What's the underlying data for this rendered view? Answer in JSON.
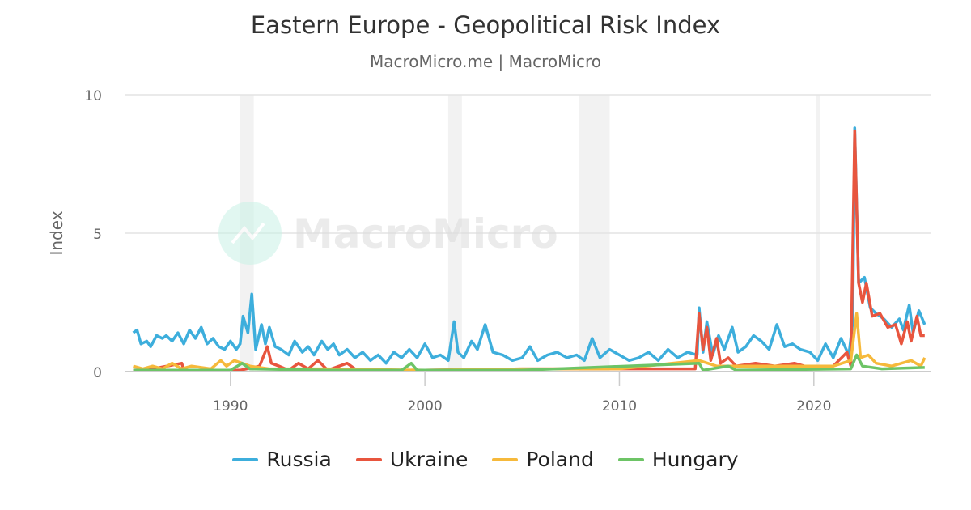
{
  "chart_data": {
    "type": "line",
    "title": "Eastern Europe - Geopolitical Risk Index",
    "subtitle": "MacroMicro.me | MacroMicro",
    "ylabel": "Index",
    "xlabel": "",
    "xlim": [
      1984.6,
      2026
    ],
    "ylim": [
      0,
      10
    ],
    "yticks": [
      0,
      5,
      10
    ],
    "xticks": [
      1990,
      2000,
      2010,
      2020
    ],
    "grid": true,
    "legend_position": "bottom",
    "watermark": "MacroMicro",
    "recession_bands": [
      [
        1990.5,
        1991.2
      ],
      [
        2001.2,
        2001.9
      ],
      [
        2007.9,
        2009.5
      ],
      [
        2020.1,
        2020.3
      ]
    ],
    "series": [
      {
        "name": "Russia",
        "color": "#3DAEDC",
        "points": [
          [
            1985.0,
            1.4
          ],
          [
            1985.2,
            1.5
          ],
          [
            1985.4,
            1.0
          ],
          [
            1985.7,
            1.1
          ],
          [
            1985.9,
            0.9
          ],
          [
            1986.2,
            1.3
          ],
          [
            1986.5,
            1.2
          ],
          [
            1986.7,
            1.3
          ],
          [
            1987.0,
            1.1
          ],
          [
            1987.3,
            1.4
          ],
          [
            1987.6,
            1.0
          ],
          [
            1987.9,
            1.5
          ],
          [
            1988.2,
            1.2
          ],
          [
            1988.5,
            1.6
          ],
          [
            1988.8,
            1.0
          ],
          [
            1989.1,
            1.2
          ],
          [
            1989.4,
            0.9
          ],
          [
            1989.7,
            0.8
          ],
          [
            1990.0,
            1.1
          ],
          [
            1990.3,
            0.8
          ],
          [
            1990.5,
            1.0
          ],
          [
            1990.65,
            2.0
          ],
          [
            1990.9,
            1.4
          ],
          [
            1991.1,
            2.8
          ],
          [
            1991.3,
            0.8
          ],
          [
            1991.6,
            1.7
          ],
          [
            1991.8,
            1.0
          ],
          [
            1992.0,
            1.6
          ],
          [
            1992.3,
            0.9
          ],
          [
            1992.6,
            0.8
          ],
          [
            1993.0,
            0.6
          ],
          [
            1993.3,
            1.1
          ],
          [
            1993.7,
            0.7
          ],
          [
            1994.0,
            0.9
          ],
          [
            1994.3,
            0.6
          ],
          [
            1994.7,
            1.1
          ],
          [
            1995.0,
            0.8
          ],
          [
            1995.3,
            1.0
          ],
          [
            1995.6,
            0.6
          ],
          [
            1996.0,
            0.8
          ],
          [
            1996.4,
            0.5
          ],
          [
            1996.8,
            0.7
          ],
          [
            1997.2,
            0.4
          ],
          [
            1997.6,
            0.6
          ],
          [
            1998.0,
            0.3
          ],
          [
            1998.4,
            0.7
          ],
          [
            1998.8,
            0.5
          ],
          [
            1999.2,
            0.8
          ],
          [
            1999.6,
            0.5
          ],
          [
            2000.0,
            1.0
          ],
          [
            2000.4,
            0.5
          ],
          [
            2000.8,
            0.6
          ],
          [
            2001.2,
            0.4
          ],
          [
            2001.5,
            1.8
          ],
          [
            2001.7,
            0.7
          ],
          [
            2002.0,
            0.5
          ],
          [
            2002.4,
            1.1
          ],
          [
            2002.7,
            0.8
          ],
          [
            2003.1,
            1.7
          ],
          [
            2003.5,
            0.7
          ],
          [
            2004.0,
            0.6
          ],
          [
            2004.5,
            0.4
          ],
          [
            2005.0,
            0.5
          ],
          [
            2005.4,
            0.9
          ],
          [
            2005.8,
            0.4
          ],
          [
            2006.3,
            0.6
          ],
          [
            2006.8,
            0.7
          ],
          [
            2007.3,
            0.5
          ],
          [
            2007.8,
            0.6
          ],
          [
            2008.2,
            0.4
          ],
          [
            2008.6,
            1.2
          ],
          [
            2009.0,
            0.5
          ],
          [
            2009.5,
            0.8
          ],
          [
            2010.0,
            0.6
          ],
          [
            2010.5,
            0.4
          ],
          [
            2011.0,
            0.5
          ],
          [
            2011.5,
            0.7
          ],
          [
            2012.0,
            0.4
          ],
          [
            2012.5,
            0.8
          ],
          [
            2013.0,
            0.5
          ],
          [
            2013.5,
            0.7
          ],
          [
            2014.0,
            0.6
          ],
          [
            2014.1,
            2.3
          ],
          [
            2014.3,
            0.7
          ],
          [
            2014.5,
            1.8
          ],
          [
            2014.8,
            0.6
          ],
          [
            2015.1,
            1.3
          ],
          [
            2015.4,
            0.8
          ],
          [
            2015.8,
            1.6
          ],
          [
            2016.1,
            0.7
          ],
          [
            2016.5,
            0.9
          ],
          [
            2016.9,
            1.3
          ],
          [
            2017.3,
            1.1
          ],
          [
            2017.7,
            0.8
          ],
          [
            2018.1,
            1.7
          ],
          [
            2018.5,
            0.9
          ],
          [
            2018.9,
            1.0
          ],
          [
            2019.3,
            0.8
          ],
          [
            2019.8,
            0.7
          ],
          [
            2020.2,
            0.4
          ],
          [
            2020.6,
            1.0
          ],
          [
            2021.0,
            0.5
          ],
          [
            2021.4,
            1.2
          ],
          [
            2021.8,
            0.6
          ],
          [
            2022.0,
            1.8
          ],
          [
            2022.1,
            8.8
          ],
          [
            2022.3,
            3.2
          ],
          [
            2022.6,
            3.4
          ],
          [
            2022.9,
            2.3
          ],
          [
            2023.2,
            2.1
          ],
          [
            2023.6,
            1.9
          ],
          [
            2024.0,
            1.6
          ],
          [
            2024.4,
            1.9
          ],
          [
            2024.6,
            1.5
          ],
          [
            2024.9,
            2.4
          ],
          [
            2025.1,
            1.4
          ],
          [
            2025.4,
            2.2
          ],
          [
            2025.7,
            1.7
          ]
        ]
      },
      {
        "name": "Ukraine",
        "color": "#E8553E",
        "points": [
          [
            1985.0,
            0.05
          ],
          [
            1986.0,
            0.1
          ],
          [
            1987.5,
            0.3
          ],
          [
            1987.6,
            0.05
          ],
          [
            1989.0,
            0.05
          ],
          [
            1990.5,
            0.05
          ],
          [
            1991.5,
            0.2
          ],
          [
            1991.9,
            0.9
          ],
          [
            1992.1,
            0.3
          ],
          [
            1992.5,
            0.2
          ],
          [
            1993.0,
            0.05
          ],
          [
            1993.5,
            0.3
          ],
          [
            1994.0,
            0.1
          ],
          [
            1994.5,
            0.4
          ],
          [
            1995.0,
            0.05
          ],
          [
            1996.0,
            0.3
          ],
          [
            1996.5,
            0.05
          ],
          [
            2000.0,
            0.05
          ],
          [
            2005.0,
            0.1
          ],
          [
            2010.0,
            0.1
          ],
          [
            2013.9,
            0.1
          ],
          [
            2014.1,
            2.1
          ],
          [
            2014.3,
            0.8
          ],
          [
            2014.5,
            1.6
          ],
          [
            2014.7,
            0.4
          ],
          [
            2015.0,
            1.2
          ],
          [
            2015.2,
            0.3
          ],
          [
            2015.6,
            0.5
          ],
          [
            2016.0,
            0.2
          ],
          [
            2017.0,
            0.3
          ],
          [
            2018.0,
            0.2
          ],
          [
            2019.0,
            0.3
          ],
          [
            2020.0,
            0.1
          ],
          [
            2021.0,
            0.2
          ],
          [
            2021.7,
            0.7
          ],
          [
            2021.9,
            0.2
          ],
          [
            2022.1,
            8.7
          ],
          [
            2022.3,
            3.2
          ],
          [
            2022.5,
            2.5
          ],
          [
            2022.7,
            3.2
          ],
          [
            2023.0,
            2.0
          ],
          [
            2023.4,
            2.1
          ],
          [
            2023.8,
            1.6
          ],
          [
            2024.2,
            1.7
          ],
          [
            2024.5,
            1.0
          ],
          [
            2024.8,
            1.8
          ],
          [
            2025.0,
            1.1
          ],
          [
            2025.3,
            2.0
          ],
          [
            2025.5,
            1.3
          ],
          [
            2025.7,
            1.3
          ]
        ]
      },
      {
        "name": "Poland",
        "color": "#F6B93B",
        "points": [
          [
            1985.0,
            0.2
          ],
          [
            1985.5,
            0.1
          ],
          [
            1986.0,
            0.2
          ],
          [
            1986.5,
            0.1
          ],
          [
            1987.0,
            0.3
          ],
          [
            1987.5,
            0.1
          ],
          [
            1988.0,
            0.2
          ],
          [
            1989.0,
            0.1
          ],
          [
            1989.5,
            0.4
          ],
          [
            1989.8,
            0.2
          ],
          [
            1990.2,
            0.4
          ],
          [
            1990.6,
            0.3
          ],
          [
            1991.0,
            0.2
          ],
          [
            1992.0,
            0.1
          ],
          [
            1995.0,
            0.1
          ],
          [
            2000.0,
            0.05
          ],
          [
            2005.0,
            0.1
          ],
          [
            2010.0,
            0.1
          ],
          [
            2014.1,
            0.4
          ],
          [
            2015.0,
            0.2
          ],
          [
            2018.0,
            0.2
          ],
          [
            2021.0,
            0.2
          ],
          [
            2021.9,
            0.4
          ],
          [
            2022.2,
            2.1
          ],
          [
            2022.4,
            0.5
          ],
          [
            2022.8,
            0.6
          ],
          [
            2023.2,
            0.3
          ],
          [
            2024.0,
            0.2
          ],
          [
            2025.0,
            0.4
          ],
          [
            2025.5,
            0.2
          ],
          [
            2025.7,
            0.5
          ]
        ]
      },
      {
        "name": "Hungary",
        "color": "#6DC466",
        "points": [
          [
            1985.0,
            0.05
          ],
          [
            1990.0,
            0.05
          ],
          [
            1990.6,
            0.3
          ],
          [
            1991.0,
            0.1
          ],
          [
            1995.0,
            0.05
          ],
          [
            1998.8,
            0.05
          ],
          [
            1999.3,
            0.3
          ],
          [
            1999.6,
            0.05
          ],
          [
            2005.0,
            0.05
          ],
          [
            2014.1,
            0.3
          ],
          [
            2014.3,
            0.05
          ],
          [
            2015.6,
            0.2
          ],
          [
            2016.0,
            0.05
          ],
          [
            2021.9,
            0.1
          ],
          [
            2022.2,
            0.6
          ],
          [
            2022.5,
            0.2
          ],
          [
            2023.5,
            0.1
          ],
          [
            2025.7,
            0.15
          ]
        ]
      }
    ]
  }
}
